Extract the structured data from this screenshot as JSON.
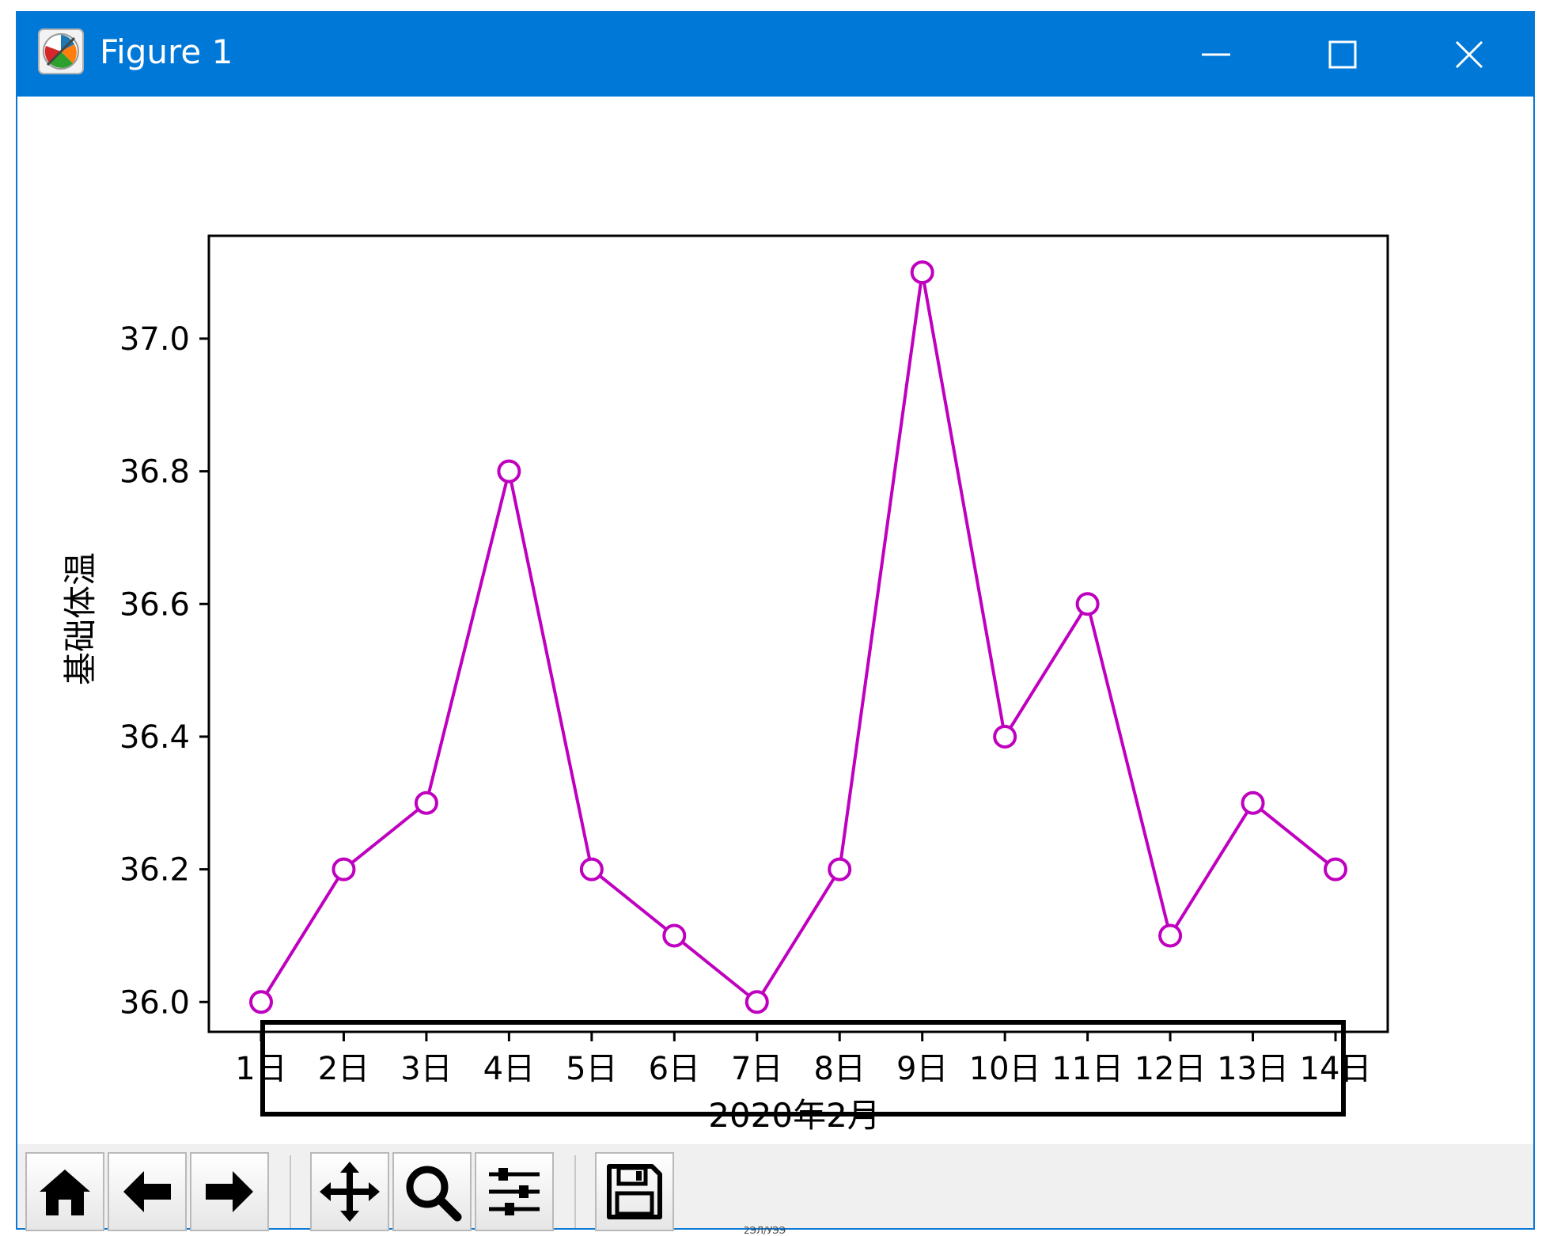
{
  "window": {
    "title": "Figure 1",
    "title_bar_color": "#0078d7",
    "icons": {
      "app": "matplotlib-icon",
      "minimize": "minimize-icon",
      "maximize": "maximize-icon",
      "close": "close-icon"
    }
  },
  "toolbar": {
    "buttons": [
      {
        "name": "home-button",
        "icon": "home-icon"
      },
      {
        "name": "back-button",
        "icon": "arrow-left-icon"
      },
      {
        "name": "forward-button",
        "icon": "arrow-right-icon"
      },
      {
        "name": "pan-button",
        "icon": "move-icon"
      },
      {
        "name": "zoom-button",
        "icon": "magnifier-icon"
      },
      {
        "name": "configure-subplots-button",
        "icon": "sliders-icon"
      },
      {
        "name": "save-button",
        "icon": "floppy-disk-icon"
      }
    ]
  },
  "chart_data": {
    "type": "line",
    "title": "",
    "xlabel": "2020年2月",
    "ylabel": "基础体温",
    "categories": [
      "1日",
      "2日",
      "3日",
      "4日",
      "5日",
      "6日",
      "7日",
      "8日",
      "9日",
      "10日",
      "11日",
      "12日",
      "13日",
      "14日"
    ],
    "series": [
      {
        "values": [
          36.0,
          36.2,
          36.3,
          36.8,
          36.2,
          36.1,
          36.0,
          36.2,
          37.1,
          36.4,
          36.6,
          36.1,
          36.3,
          36.2
        ],
        "color": "#bf00bf",
        "marker": "circle",
        "marker_face": "#ffffff"
      }
    ],
    "ylim": [
      35.955,
      37.155
    ],
    "yticks": [
      36.0,
      36.2,
      36.4,
      36.6,
      36.8,
      37.0
    ],
    "ytick_labels": [
      "36.0",
      "36.2",
      "36.4",
      "36.6",
      "36.8",
      "37.0"
    ],
    "grid": false,
    "annotation": "black rectangle drawn around the x-axis tick labels"
  },
  "footer_text": "2ЭЛ/УЭЭ"
}
